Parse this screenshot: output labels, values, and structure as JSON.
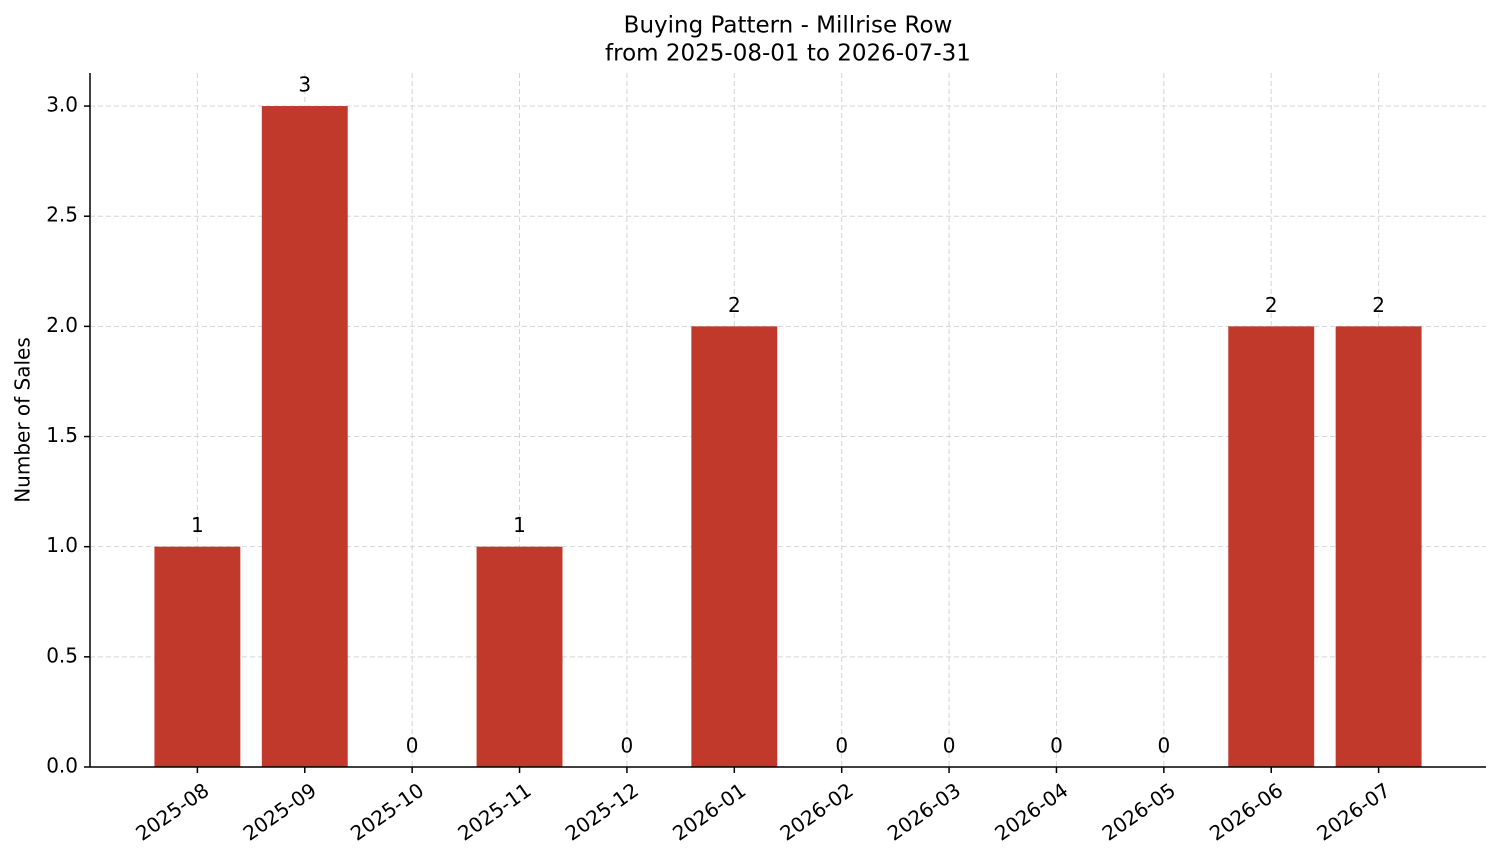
{
  "chart_data": {
    "type": "bar",
    "title": "Buying Pattern - Millrise Row",
    "subtitle": "from 2025-08-01 to 2026-07-31",
    "y_label": "Number of Sales",
    "categories": [
      "2025-08",
      "2025-09",
      "2025-10",
      "2025-11",
      "2025-12",
      "2026-01",
      "2026-02",
      "2026-03",
      "2026-04",
      "2026-05",
      "2026-06",
      "2026-07"
    ],
    "values": [
      1,
      3,
      0,
      1,
      0,
      2,
      0,
      0,
      0,
      0,
      2,
      2
    ],
    "color": "#c0392b",
    "ylim": [
      0,
      3.15
    ],
    "yticks": [
      {
        "value": 0,
        "label": "0.0"
      },
      {
        "value": 0.5,
        "label": "0.5"
      },
      {
        "value": 1,
        "label": "1.0"
      },
      {
        "value": 1.5,
        "label": "1.5"
      },
      {
        "value": 2,
        "label": "2.0"
      },
      {
        "value": 2.5,
        "label": "2.5"
      },
      {
        "value": 3,
        "label": "3.0"
      }
    ],
    "grid": true
  }
}
